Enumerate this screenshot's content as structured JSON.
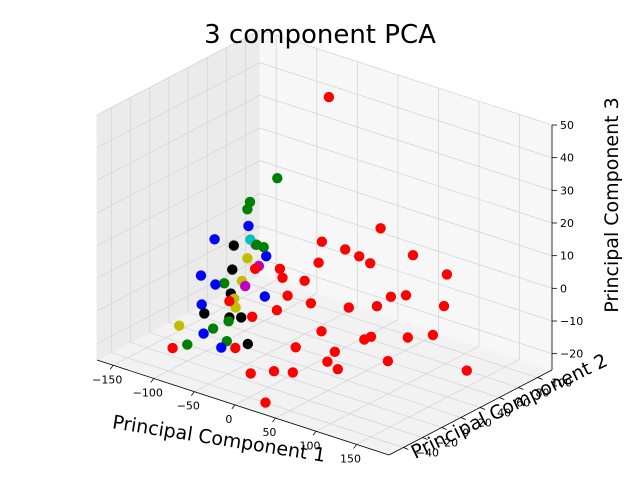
{
  "chart_data": {
    "type": "scatter",
    "projection": "3d",
    "title": "3 component PCA",
    "xlabel": "Principal Component 1",
    "ylabel": "Principal Component 2",
    "zlabel": "Principal Component 3",
    "xlim": [
      -170,
      190
    ],
    "ylim": [
      -55,
      115
    ],
    "zlim": [
      -25,
      50
    ],
    "xticks": [
      -150,
      -100,
      -50,
      0,
      50,
      100,
      150
    ],
    "yticks": [
      -40,
      -20,
      0,
      20,
      40,
      60,
      80,
      100
    ],
    "zticks": [
      -20,
      -10,
      0,
      10,
      20,
      30,
      40,
      50
    ],
    "grid": true,
    "legend": "none",
    "colors": {
      "red": "#ff0000",
      "green": "#008000",
      "blue": "#0000ff",
      "black": "#000000",
      "yellow": "#bfbf00",
      "magenta": "#bf00bf",
      "cyan": "#00bfbf"
    },
    "series": [
      {
        "color": "#ff0000",
        "points": [
          [
            -20,
            60,
            50
          ],
          [
            -5,
            40,
            10
          ],
          [
            -130,
            -10,
            -25
          ],
          [
            150,
            60,
            -20
          ],
          [
            -30,
            20,
            0
          ],
          [
            30,
            10,
            -10
          ],
          [
            -20,
            -20,
            -5
          ],
          [
            80,
            40,
            0
          ],
          [
            100,
            20,
            -15
          ],
          [
            70,
            -10,
            -10
          ],
          [
            10,
            0,
            -15
          ],
          [
            0,
            60,
            5
          ],
          [
            20,
            80,
            10
          ],
          [
            60,
            80,
            5
          ],
          [
            40,
            30,
            -5
          ],
          [
            -10,
            -30,
            -20
          ],
          [
            20,
            -40,
            -25
          ],
          [
            50,
            10,
            -20
          ],
          [
            -40,
            0,
            5
          ],
          [
            120,
            50,
            -10
          ],
          [
            90,
            90,
            0
          ],
          [
            -60,
            -10,
            -5
          ],
          [
            5,
            20,
            -5
          ],
          [
            45,
            55,
            -8
          ],
          [
            -15,
            45,
            2
          ],
          [
            65,
            25,
            -12
          ],
          [
            30,
            -20,
            -18
          ],
          [
            -25,
            10,
            -8
          ],
          [
            110,
            70,
            -5
          ],
          [
            15,
            5,
            5
          ],
          [
            -45,
            30,
            0
          ],
          [
            75,
            60,
            -3
          ],
          [
            35,
            45,
            8
          ],
          [
            -5,
            -10,
            -22
          ],
          [
            55,
            -5,
            -15
          ],
          [
            25,
            65,
            2
          ],
          [
            -35,
            -25,
            -15
          ],
          [
            85,
            15,
            -8
          ],
          [
            0,
            0,
            0
          ],
          [
            95,
            45,
            -12
          ]
        ]
      },
      {
        "color": "#008000",
        "points": [
          [
            -70,
            20,
            20
          ],
          [
            -60,
            40,
            25
          ],
          [
            -90,
            10,
            -5
          ],
          [
            -100,
            -20,
            -20
          ],
          [
            -80,
            -10,
            -15
          ],
          [
            -65,
            30,
            5
          ],
          [
            -55,
            -15,
            -10
          ],
          [
            -75,
            0,
            -20
          ],
          [
            -50,
            10,
            10
          ],
          [
            -85,
            30,
            15
          ]
        ]
      },
      {
        "color": "#0000ff",
        "points": [
          [
            -90,
            0,
            10
          ],
          [
            -95,
            -10,
            0
          ],
          [
            -100,
            -5,
            -10
          ],
          [
            -60,
            10,
            15
          ],
          [
            -50,
            20,
            5
          ],
          [
            -80,
            -20,
            -15
          ],
          [
            -70,
            -10,
            -20
          ],
          [
            -40,
            10,
            -5
          ],
          [
            -95,
            5,
            -5
          ]
        ]
      },
      {
        "color": "#000000",
        "points": [
          [
            -90,
            20,
            5
          ],
          [
            -80,
            10,
            0
          ],
          [
            -70,
            0,
            -5
          ],
          [
            -60,
            -10,
            -10
          ],
          [
            -75,
            15,
            -15
          ],
          [
            -55,
            5,
            -20
          ],
          [
            -85,
            -15,
            -10
          ]
        ]
      },
      {
        "color": "#bfbf00",
        "points": [
          [
            -85,
            30,
            0
          ],
          [
            -80,
            20,
            -5
          ],
          [
            -110,
            -20,
            -15
          ],
          [
            -70,
            5,
            -10
          ],
          [
            -60,
            -5,
            -5
          ]
        ]
      },
      {
        "color": "#bf00bf",
        "points": [
          [
            -75,
            30,
            5
          ],
          [
            -65,
            25,
            0
          ],
          [
            -70,
            15,
            -5
          ]
        ]
      },
      {
        "color": "#00bfbf",
        "points": [
          [
            -72,
            22,
            8
          ]
        ]
      }
    ]
  }
}
